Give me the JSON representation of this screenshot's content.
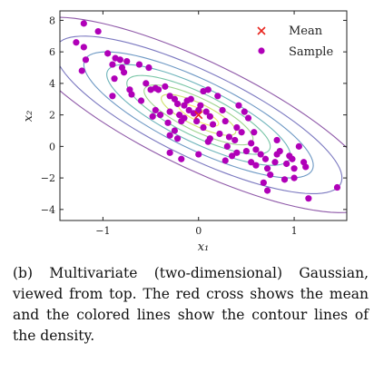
{
  "caption": "(b) Multivariate (two-dimensional) Gaussian, viewed from top. The red cross shows the mean and the colored lines show the contour lines of the density.",
  "chart_data": {
    "type": "scatter",
    "title": "",
    "xlabel": "x₁",
    "ylabel": "x₂",
    "xlim": [
      -1.45,
      1.55
    ],
    "ylim": [
      -4.7,
      8.6
    ],
    "xticks": [
      -1,
      0,
      1
    ],
    "yticks": [
      -4,
      -2,
      0,
      2,
      4,
      6,
      8
    ],
    "xtick_labels": [
      "−1",
      "0",
      "1"
    ],
    "ytick_labels": [
      "−4",
      "−2",
      "0",
      "2",
      "4",
      "6",
      "8"
    ],
    "grid": false,
    "legend_position": "top-right",
    "mean": {
      "name": "Mean",
      "x": 0.0,
      "y": 2.0,
      "color": "#e8261f",
      "marker": "x"
    },
    "samples": {
      "name": "Sample",
      "color": "#b000b8",
      "marker": "circle",
      "points": [
        [
          -1.2,
          7.8
        ],
        [
          -1.28,
          6.6
        ],
        [
          -1.05,
          7.3
        ],
        [
          -1.2,
          6.3
        ],
        [
          -1.18,
          5.5
        ],
        [
          -1.22,
          4.8
        ],
        [
          -0.95,
          5.9
        ],
        [
          -0.9,
          5.2
        ],
        [
          -0.87,
          5.6
        ],
        [
          -0.82,
          5.5
        ],
        [
          -0.8,
          5.0
        ],
        [
          -0.75,
          5.4
        ],
        [
          -0.78,
          4.7
        ],
        [
          -0.88,
          4.3
        ],
        [
          -0.9,
          3.2
        ],
        [
          -0.72,
          3.6
        ],
        [
          -0.7,
          3.3
        ],
        [
          -0.55,
          4.0
        ],
        [
          -0.52,
          5.0
        ],
        [
          -0.45,
          3.7
        ],
        [
          -0.5,
          3.6
        ],
        [
          -0.42,
          3.6
        ],
        [
          -0.6,
          2.9
        ],
        [
          -0.45,
          2.3
        ],
        [
          -0.48,
          1.9
        ],
        [
          -0.4,
          2.0
        ],
        [
          -0.3,
          3.2
        ],
        [
          -0.25,
          3.0
        ],
        [
          -0.22,
          2.7
        ],
        [
          -0.3,
          2.2
        ],
        [
          -0.2,
          2.0
        ],
        [
          -0.18,
          1.6
        ],
        [
          -0.32,
          1.5
        ],
        [
          -0.25,
          1.0
        ],
        [
          -0.12,
          2.9
        ],
        [
          -0.08,
          3.0
        ],
        [
          -0.1,
          2.3
        ],
        [
          -0.15,
          1.8
        ],
        [
          -0.05,
          2.1
        ],
        [
          -0.02,
          1.6
        ],
        [
          0.0,
          2.3
        ],
        [
          0.05,
          3.5
        ],
        [
          0.1,
          3.6
        ],
        [
          0.02,
          2.6
        ],
        [
          0.08,
          2.2
        ],
        [
          0.12,
          1.9
        ],
        [
          0.05,
          1.2
        ],
        [
          0.15,
          1.4
        ],
        [
          -0.3,
          0.7
        ],
        [
          -0.22,
          0.5
        ],
        [
          -0.3,
          -0.4
        ],
        [
          -0.18,
          -0.8
        ],
        [
          0.0,
          -0.5
        ],
        [
          0.1,
          0.3
        ],
        [
          0.2,
          3.2
        ],
        [
          0.25,
          2.3
        ],
        [
          0.28,
          1.6
        ],
        [
          0.22,
          0.8
        ],
        [
          0.3,
          0.0
        ],
        [
          0.35,
          -0.6
        ],
        [
          0.32,
          0.6
        ],
        [
          0.4,
          1.2
        ],
        [
          0.42,
          2.6
        ],
        [
          0.48,
          2.2
        ],
        [
          0.4,
          -0.4
        ],
        [
          0.38,
          0.4
        ],
        [
          0.5,
          -0.3
        ],
        [
          0.55,
          0.2
        ],
        [
          0.58,
          0.9
        ],
        [
          0.52,
          1.8
        ],
        [
          0.55,
          -1.0
        ],
        [
          0.6,
          -1.2
        ],
        [
          0.65,
          -0.5
        ],
        [
          0.7,
          -0.8
        ],
        [
          0.72,
          -1.4
        ],
        [
          0.75,
          -1.8
        ],
        [
          0.68,
          -2.3
        ],
        [
          0.82,
          0.4
        ],
        [
          0.85,
          -0.3
        ],
        [
          0.8,
          -1.0
        ],
        [
          0.92,
          -1.1
        ],
        [
          0.95,
          -0.6
        ],
        [
          1.0,
          -1.4
        ],
        [
          0.98,
          -0.8
        ],
        [
          1.05,
          0.0
        ],
        [
          1.1,
          -1.0
        ],
        [
          1.12,
          -1.3
        ],
        [
          1.0,
          -2.0
        ],
        [
          0.9,
          -2.1
        ],
        [
          0.72,
          -2.8
        ],
        [
          1.15,
          -3.3
        ],
        [
          1.45,
          -2.6
        ],
        [
          0.82,
          -0.5
        ],
        [
          -0.62,
          5.2
        ],
        [
          -0.35,
          3.8
        ],
        [
          0.12,
          0.5
        ],
        [
          0.28,
          -0.9
        ],
        [
          0.6,
          -0.2
        ],
        [
          -0.15,
          2.6
        ],
        [
          0.45,
          0.9
        ]
      ]
    },
    "contours": {
      "center": [
        0.0,
        2.0
      ],
      "sigma_x": 0.6,
      "sigma_y": 2.0,
      "rho": -0.8,
      "levels_mahalanobis": [
        0.35,
        0.65,
        0.95,
        1.25,
        1.6,
        2.0,
        2.5,
        3.1
      ],
      "colors": [
        "#f2ea6b",
        "#cde16a",
        "#9fd48e",
        "#78c5a6",
        "#6cb3ba",
        "#6d98c4",
        "#7b78c0",
        "#8e58a8"
      ]
    }
  }
}
